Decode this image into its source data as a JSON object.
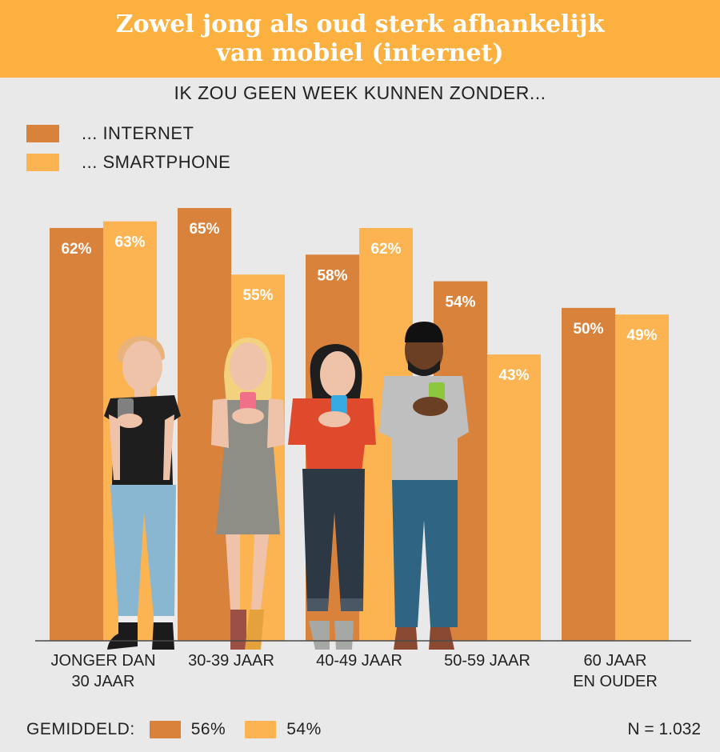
{
  "header": {
    "title_line1": "Zowel jong als oud sterk afhankelijk",
    "title_line2": "van mobiel (internet)"
  },
  "subtitle": "IK ZOU GEEN WEEK KUNNEN ZONDER...",
  "colors": {
    "internet": "#d9823b",
    "smartphone": "#fbb451",
    "header": "#fbb040",
    "background": "#e9e9ea"
  },
  "chart_data": {
    "type": "bar",
    "title": "IK ZOU GEEN WEEK KUNNEN ZONDER...",
    "categories": [
      [
        "JONGER DAN",
        "30 JAAR"
      ],
      [
        "30-39 JAAR"
      ],
      [
        "40-49 JAAR"
      ],
      [
        "50-59 JAAR"
      ],
      [
        "60 JAAR",
        "EN OUDER"
      ]
    ],
    "series": [
      {
        "name": "... INTERNET",
        "color": "#d9823b",
        "values": [
          62,
          65,
          58,
          54,
          50
        ]
      },
      {
        "name": "... SMARTPHONE",
        "color": "#fbb451",
        "values": [
          63,
          55,
          62,
          43,
          49
        ]
      }
    ],
    "value_suffix": "%",
    "ylim": [
      0,
      65
    ],
    "legend": "top-left",
    "grid": false
  },
  "footer": {
    "average_label": "GEMIDDELD:",
    "internet_average": "56%",
    "smartphone_average": "54%",
    "sample": "N = 1.032"
  }
}
